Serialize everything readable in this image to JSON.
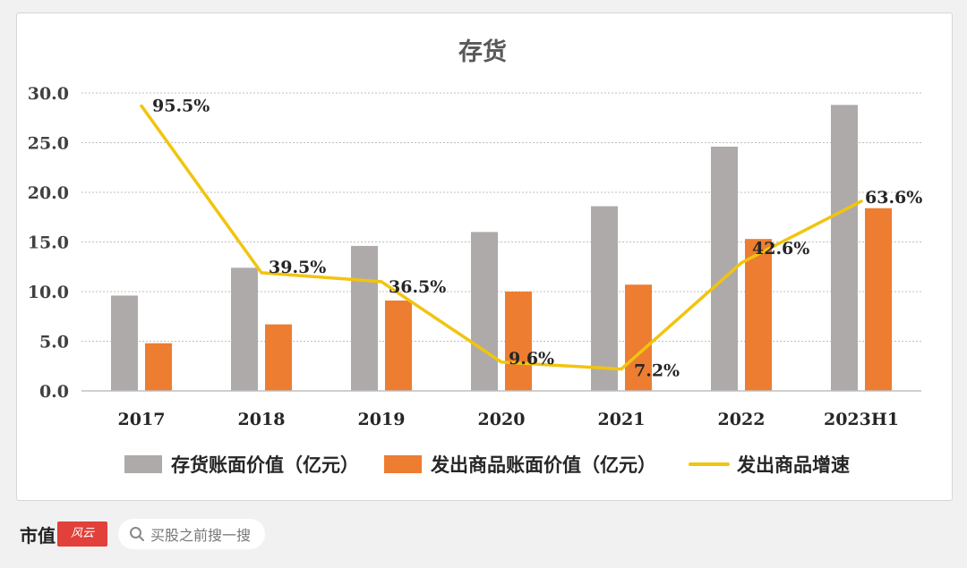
{
  "chart_data": {
    "type": "bar",
    "title": "存货",
    "categories": [
      "2017",
      "2018",
      "2019",
      "2020",
      "2021",
      "2022",
      "2023H1"
    ],
    "y_ticks": [
      "0.0",
      "5.0",
      "10.0",
      "15.0",
      "20.0",
      "25.0",
      "30.0"
    ],
    "ylim": [
      0,
      30
    ],
    "grid": true,
    "legend_position": "bottom",
    "series": [
      {
        "name": "存货账面价值（亿元）",
        "type": "bar",
        "color": "#aeaaaa",
        "values": [
          9.6,
          12.4,
          14.6,
          16.0,
          18.6,
          24.6,
          28.8
        ]
      },
      {
        "name": "发出商品账面价值（亿元）",
        "type": "bar",
        "color": "#ed7d31",
        "values": [
          4.8,
          6.7,
          9.1,
          10.0,
          10.7,
          15.3,
          18.4
        ]
      },
      {
        "name": "发出商品增速",
        "type": "line",
        "color": "#f1c40f",
        "values": [
          28.7,
          11.9,
          11.0,
          2.9,
          2.2,
          12.9,
          19.1
        ],
        "labels": [
          "95.5%",
          "39.5%",
          "36.5%",
          "9.6%",
          "7.2%",
          "42.6%",
          "63.6%"
        ]
      }
    ]
  },
  "footer": {
    "brand": "市值",
    "search_placeholder": "买股之前搜一搜"
  }
}
